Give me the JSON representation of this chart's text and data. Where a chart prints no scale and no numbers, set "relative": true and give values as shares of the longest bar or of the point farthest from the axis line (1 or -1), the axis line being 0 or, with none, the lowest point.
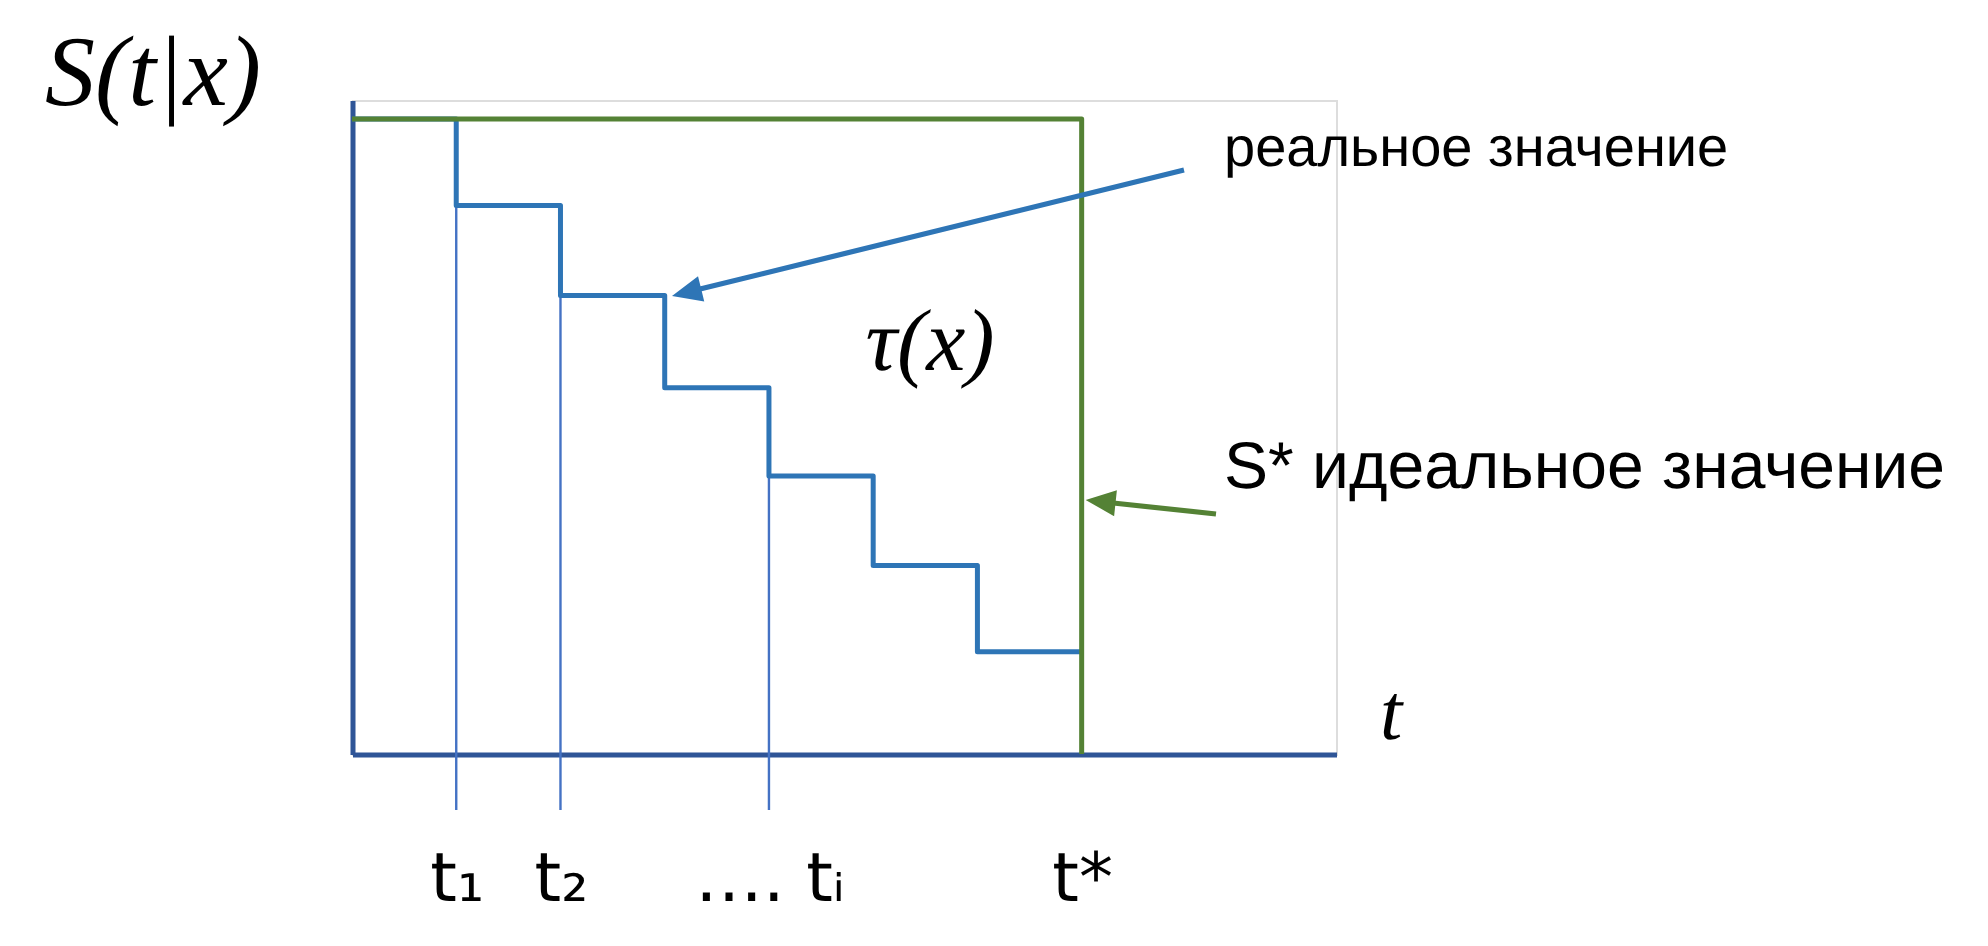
{
  "chart_data": {
    "type": "step",
    "relative": true,
    "xlabel": "t",
    "ylabel": "S(t|x)",
    "grid": false,
    "categories": [
      null,
      "t₁",
      "t₂",
      null,
      "…. tᵢ",
      null,
      null,
      "t*"
    ],
    "series": [
      {
        "color": "#2e75b6",
        "values": [
          1,
          0.864,
          0.722,
          0.577,
          0.438,
          0.297,
          0.161,
          0.161
        ]
      },
      {
        "color": "#548235",
        "values": [
          1,
          1,
          1,
          1,
          1,
          1,
          1,
          0
        ]
      }
    ],
    "ref_lines": [
      {
        "axis": "x",
        "value": "t₁",
        "color": "#4472c4"
      },
      {
        "axis": "x",
        "value": "t₂",
        "color": "#4472c4"
      },
      {
        "axis": "x",
        "value": "…. tᵢ",
        "color": "#4472c4"
      }
    ],
    "annotations": [
      "реальное значение",
      {
        "text": "S* идеальное значение",
        "x": "t*",
        "y": 0.4
      },
      "τ(x)"
    ]
  }
}
